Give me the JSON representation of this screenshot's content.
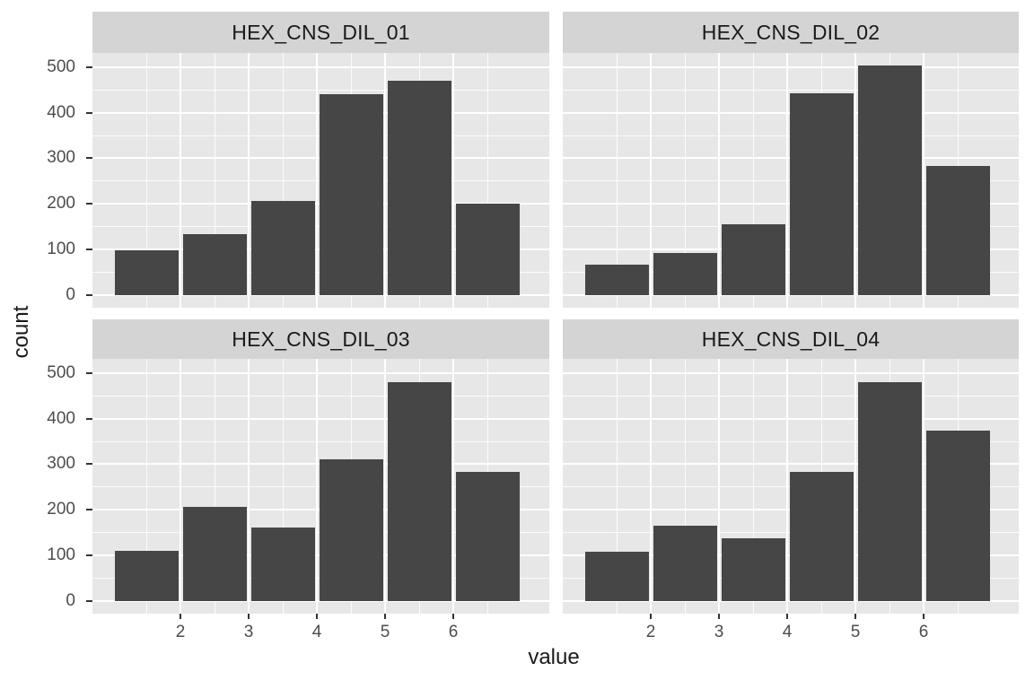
{
  "chart_data": {
    "type": "bar",
    "subtype": "faceted-histogram",
    "facet_layout": "2x2",
    "title": "",
    "xlabel": "value",
    "ylabel": "count",
    "x_bin_centers": [
      1.5,
      2.5,
      3.5,
      4.5,
      5.5,
      6.5
    ],
    "bin_width": 1,
    "x_ticks": [
      "2",
      "3",
      "4",
      "5",
      "6"
    ],
    "x_tick_values": [
      2,
      3,
      4,
      5,
      6
    ],
    "y_ticks": [
      "0",
      "100",
      "200",
      "300",
      "400",
      "500"
    ],
    "y_tick_values": [
      0,
      100,
      200,
      300,
      400,
      500
    ],
    "y_minor_values": [
      50,
      150,
      250,
      350,
      450
    ],
    "ylim": [
      0,
      530
    ],
    "grid": true,
    "legend": "none",
    "colors": {
      "bar_fill": "#464646",
      "panel_bg": "#E7E7E7",
      "strip_bg": "#D4D4D4",
      "grid_major": "#FFFFFF",
      "grid_minor": "#FFFFFF",
      "tick_text": "#4D4D4D",
      "strip_text": "#1A1A1A",
      "axis_title_text": "#1A1A1A",
      "tick_mark": "#333333"
    },
    "facets": [
      {
        "title": "HEX_CNS_DIL_01",
        "counts": [
          98,
          133,
          206,
          440,
          470,
          200
        ]
      },
      {
        "title": "HEX_CNS_DIL_02",
        "counts": [
          67,
          92,
          155,
          443,
          503,
          283
        ]
      },
      {
        "title": "HEX_CNS_DIL_03",
        "counts": [
          110,
          206,
          161,
          311,
          479,
          284
        ]
      },
      {
        "title": "HEX_CNS_DIL_04",
        "counts": [
          108,
          165,
          138,
          283,
          479,
          374
        ]
      }
    ]
  }
}
